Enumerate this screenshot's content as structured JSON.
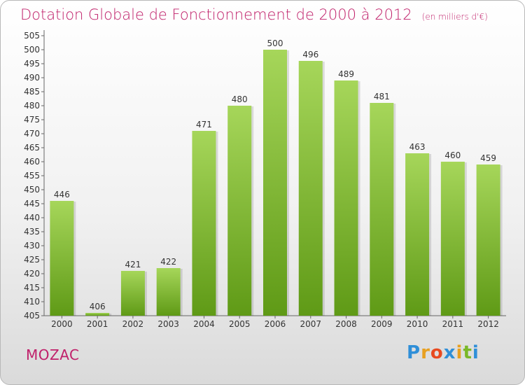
{
  "header": {
    "title": "Dotation Globale de Fonctionnement de 2000 à 2012",
    "unit": "(en milliers d'€)"
  },
  "commune": "MOZAC",
  "brand": {
    "text": "Proxiti",
    "letter_colors": [
      "#2f8fd8",
      "#e8a020",
      "#e84a20",
      "#2f8fd8",
      "#e8a020",
      "#7ab828",
      "#2f8fd8"
    ]
  },
  "chart_data": {
    "type": "bar",
    "categories": [
      "2000",
      "2001",
      "2002",
      "2003",
      "2004",
      "2005",
      "2006",
      "2007",
      "2008",
      "2009",
      "2010",
      "2011",
      "2012"
    ],
    "values": [
      446,
      406,
      421,
      422,
      471,
      480,
      500,
      496,
      489,
      481,
      463,
      460,
      459
    ],
    "title": "Dotation Globale de Fonctionnement de 2000 à 2012",
    "xlabel": "",
    "ylabel": "",
    "ylim": [
      405,
      505
    ],
    "yticks": [
      405,
      410,
      415,
      420,
      425,
      430,
      435,
      440,
      445,
      450,
      455,
      460,
      465,
      470,
      475,
      480,
      485,
      490,
      495,
      500,
      505
    ],
    "grid": false,
    "bar_color_top": "#a6d65a",
    "bar_color_bottom": "#5f9a16",
    "axis_color": "#666666",
    "text_color": "#333333"
  }
}
